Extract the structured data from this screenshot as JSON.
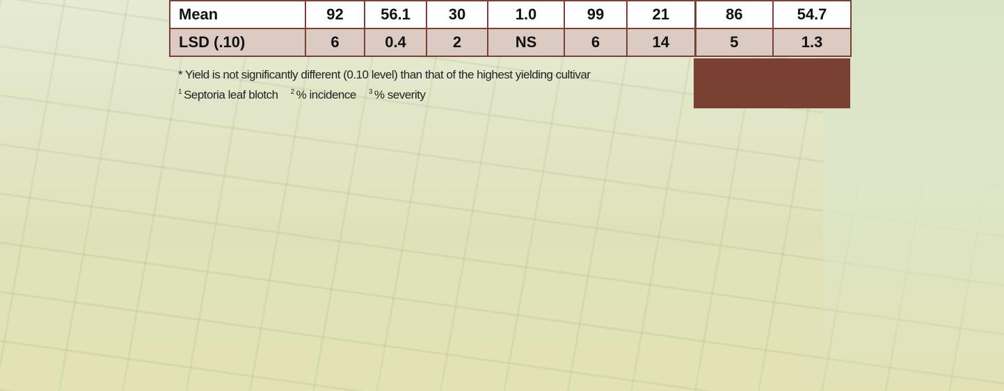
{
  "table": {
    "rows": [
      [
        "Mean",
        "92",
        "56.1",
        "30",
        "1.0",
        "99",
        "21",
        "86",
        "54.7"
      ],
      [
        "LSD (.10)",
        "6",
        "0.4",
        "2",
        "NS",
        "6",
        "14",
        "5",
        "1.3"
      ]
    ]
  },
  "footnotes": {
    "note": "* Yield is not significantly different (0.10 level) than that of the highest yielding cultivar",
    "items": [
      {
        "mark": "1",
        "text": "Septoria leaf blotch"
      },
      {
        "mark": "2",
        "text": "% incidence"
      },
      {
        "mark": "3",
        "text": "% severity"
      }
    ]
  }
}
